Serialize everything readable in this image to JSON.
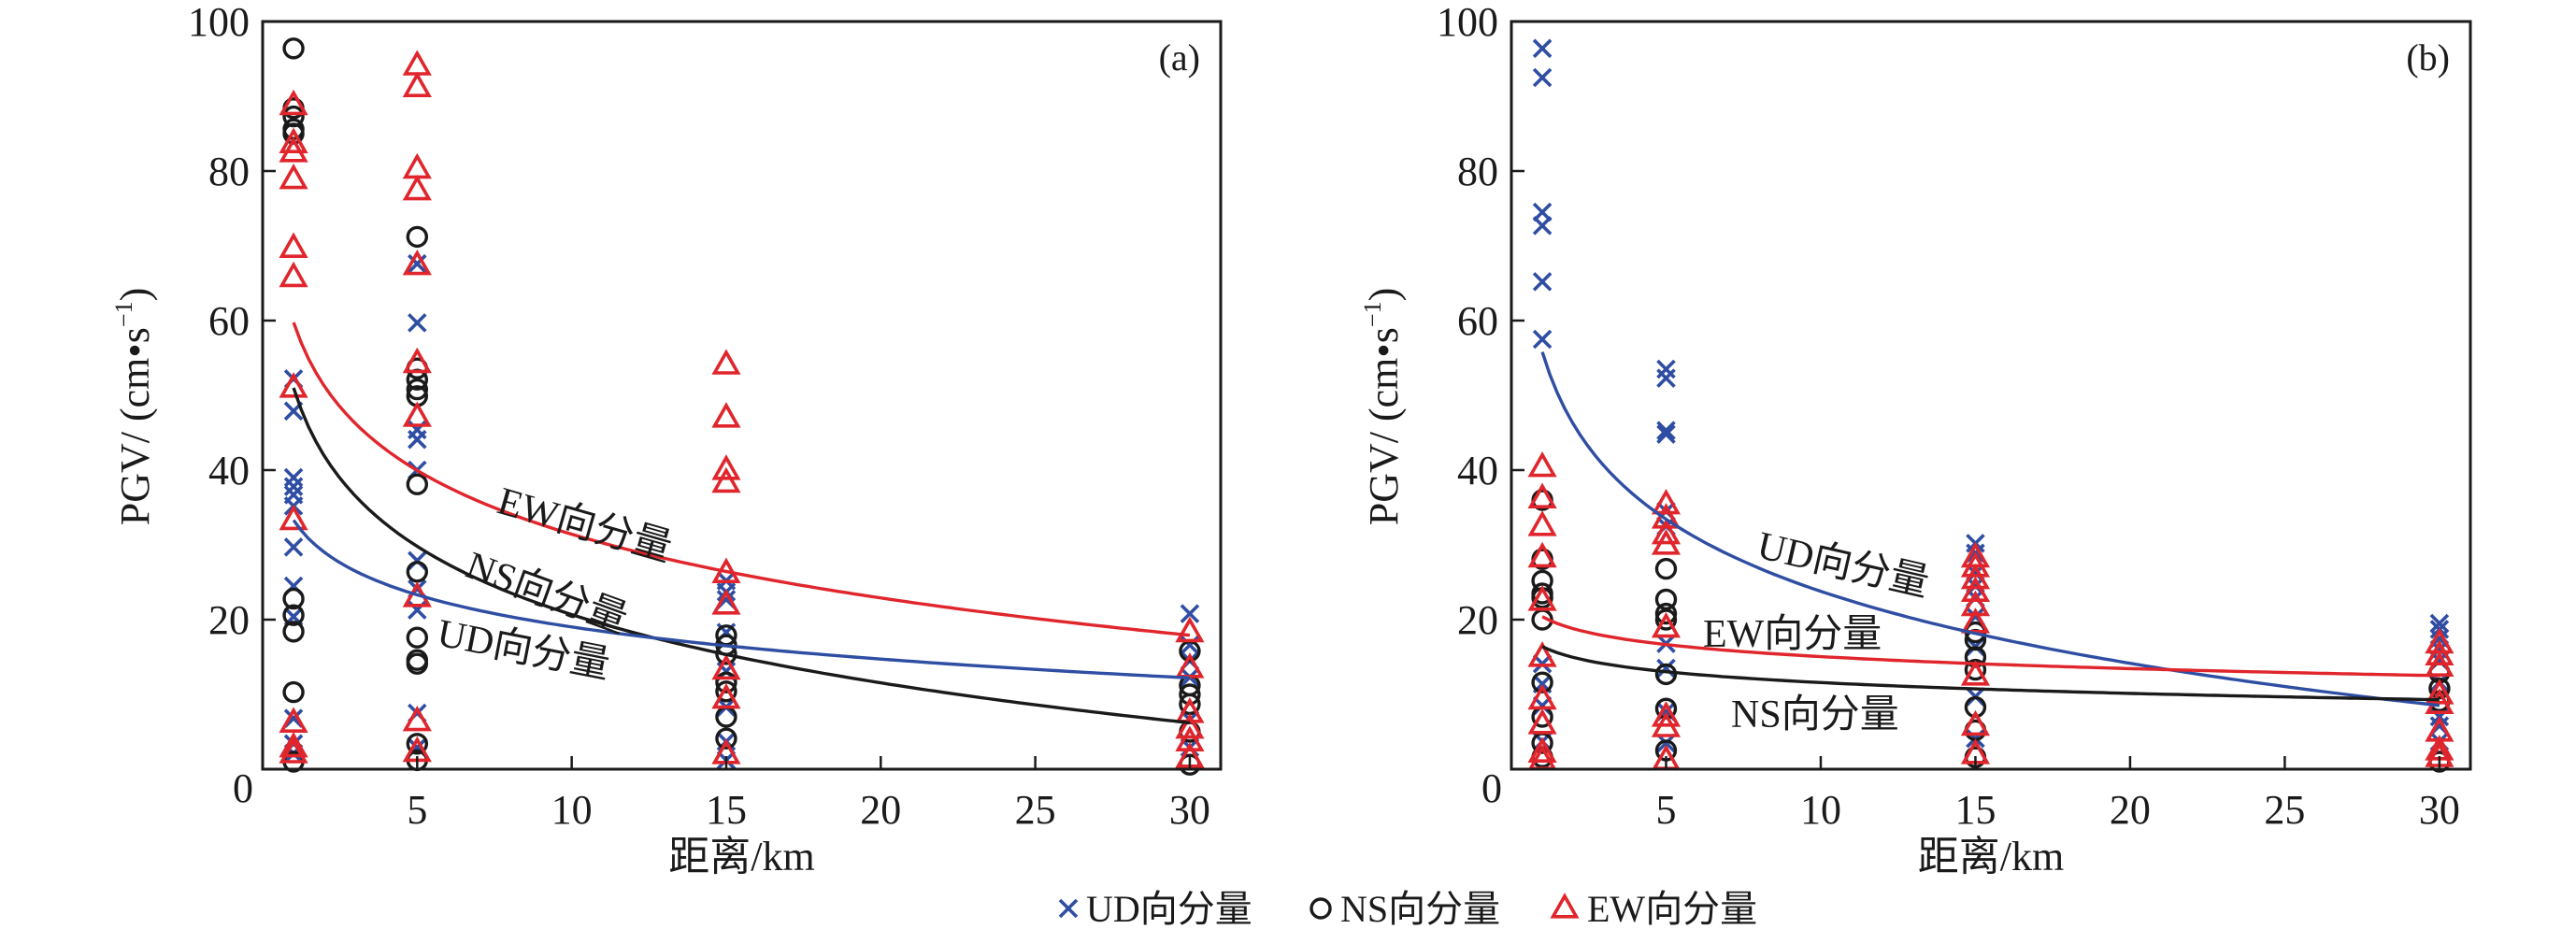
{
  "colors": {
    "UD": "#2f4ea3",
    "NS": "#1a1a1a",
    "EW": "#e0262c",
    "axis": "#1a1a1a"
  },
  "legend": {
    "position": "bottom-center",
    "items": [
      {
        "key": "UD",
        "marker": "cross-icon",
        "label": "UD向分量"
      },
      {
        "key": "NS",
        "marker": "circle-icon",
        "label": "NS向分量"
      },
      {
        "key": "EW",
        "marker": "triangle-icon",
        "label": "EW向分量"
      }
    ]
  },
  "chart_data": [
    {
      "type": "scatter",
      "panel_label": "(a)",
      "xlabel": "距离/km",
      "ylabel_main": "PGV/ (cm",
      "ylabel_dot": "•",
      "ylabel_unit": "s",
      "ylabel_exp": "−1",
      "ylabel_close": ")",
      "xlim": [
        0,
        31
      ],
      "ylim": [
        0,
        100
      ],
      "xticks": [
        5,
        10,
        15,
        20,
        25,
        30
      ],
      "yticks": [
        20,
        40,
        60,
        80
      ],
      "origin_label": "0",
      "ytick_top_label": "100",
      "grid": false,
      "series": [
        {
          "name": "UD",
          "marker": "cross",
          "points": [
            [
              1,
              52.2
            ],
            [
              1,
              47.9
            ],
            [
              1,
              39.0
            ],
            [
              1,
              37.8
            ],
            [
              1,
              36.7
            ],
            [
              1,
              35.2
            ],
            [
              1,
              29.7
            ],
            [
              1,
              24.5
            ],
            [
              1,
              20.4
            ],
            [
              1,
              6.8
            ],
            [
              1,
              3.4
            ],
            [
              1,
              2.1
            ],
            [
              5,
              67.6
            ],
            [
              5,
              59.7
            ],
            [
              5,
              45.4
            ],
            [
              5,
              44.1
            ],
            [
              5,
              40.0
            ],
            [
              5,
              27.9
            ],
            [
              5,
              24.1
            ],
            [
              5,
              21.3
            ],
            [
              5,
              7.5
            ],
            [
              5,
              2.9
            ],
            [
              15,
              25.2
            ],
            [
              15,
              23.7
            ],
            [
              15,
              22.7
            ],
            [
              15,
              18.3
            ],
            [
              15,
              13.1
            ],
            [
              15,
              8.3
            ],
            [
              15,
              3.7
            ],
            [
              15,
              1.2
            ],
            [
              30,
              20.8
            ],
            [
              30,
              16.6
            ],
            [
              30,
              14.5
            ],
            [
              30,
              12.3
            ],
            [
              30,
              6.6
            ],
            [
              30,
              2.9
            ]
          ]
        },
        {
          "name": "NS",
          "marker": "circle",
          "points": [
            [
              1,
              96.4
            ],
            [
              1,
              88.4
            ],
            [
              1,
              87.3
            ],
            [
              1,
              85.6
            ],
            [
              1,
              85.0
            ],
            [
              1,
              22.8
            ],
            [
              1,
              20.6
            ],
            [
              1,
              18.4
            ],
            [
              1,
              10.3
            ],
            [
              1,
              1.0
            ],
            [
              5,
              71.2
            ],
            [
              5,
              53.6
            ],
            [
              5,
              52.1
            ],
            [
              5,
              50.8
            ],
            [
              5,
              49.9
            ],
            [
              5,
              38.1
            ],
            [
              5,
              26.4
            ],
            [
              5,
              17.6
            ],
            [
              5,
              14.6
            ],
            [
              5,
              14.1
            ],
            [
              5,
              3.4
            ],
            [
              5,
              1.2
            ],
            [
              15,
              17.9
            ],
            [
              15,
              16.6
            ],
            [
              15,
              15.4
            ],
            [
              15,
              11.6
            ],
            [
              15,
              10.4
            ],
            [
              15,
              7.0
            ],
            [
              15,
              4.1
            ],
            [
              30,
              15.8
            ],
            [
              30,
              11.2
            ],
            [
              30,
              10.0
            ],
            [
              30,
              8.7
            ],
            [
              30,
              5.0
            ],
            [
              30,
              0.6
            ]
          ]
        },
        {
          "name": "EW",
          "marker": "triangle",
          "points": [
            [
              1,
              88.8
            ],
            [
              1,
              83.7
            ],
            [
              1,
              82.5
            ],
            [
              1,
              78.9
            ],
            [
              1,
              69.7
            ],
            [
              1,
              65.8
            ],
            [
              1,
              51.0
            ],
            [
              1,
              33.3
            ],
            [
              1,
              6.2
            ],
            [
              1,
              2.9
            ],
            [
              1,
              2.1
            ],
            [
              5,
              94.1
            ],
            [
              5,
              91.2
            ],
            [
              5,
              80.3
            ],
            [
              5,
              77.4
            ],
            [
              5,
              67.4
            ],
            [
              5,
              54.3
            ],
            [
              5,
              47.1
            ],
            [
              5,
              23.0
            ],
            [
              5,
              6.4
            ],
            [
              5,
              2.3
            ],
            [
              15,
              54.1
            ],
            [
              15,
              47.0
            ],
            [
              15,
              40.0
            ],
            [
              15,
              38.3
            ],
            [
              15,
              26.2
            ],
            [
              15,
              22.0
            ],
            [
              15,
              13.3
            ],
            [
              15,
              9.4
            ],
            [
              15,
              2.0
            ],
            [
              30,
              18.3
            ],
            [
              30,
              13.5
            ],
            [
              30,
              7.5
            ],
            [
              30,
              5.4
            ],
            [
              30,
              3.7
            ],
            [
              30,
              1.5
            ]
          ]
        }
      ],
      "fits": [
        {
          "name": "EW",
          "a": 59.75,
          "b": 12.3,
          "label": "EW向分量"
        },
        {
          "name": "NS",
          "a": 51.0,
          "b": 13.17,
          "label": "NS向分量"
        },
        {
          "name": "UD",
          "a": 33.3,
          "b": 6.2,
          "label": "UD向分量"
        }
      ]
    },
    {
      "type": "scatter",
      "panel_label": "(b)",
      "xlabel": "距离/km",
      "ylabel_main": "PGV/ (cm",
      "ylabel_dot": "•",
      "ylabel_unit": "s",
      "ylabel_exp": "−1",
      "ylabel_close": ")",
      "xlim": [
        0,
        31
      ],
      "ylim": [
        0,
        100
      ],
      "xticks": [
        5,
        10,
        15,
        20,
        25,
        30
      ],
      "yticks": [
        20,
        40,
        60,
        80
      ],
      "origin_label": "0",
      "ytick_top_label": "100",
      "grid": false,
      "series": [
        {
          "name": "UD",
          "marker": "cross",
          "points": [
            [
              1,
              96.4
            ],
            [
              1,
              92.5
            ],
            [
              1,
              74.5
            ],
            [
              1,
              72.7
            ],
            [
              1,
              65.2
            ],
            [
              1,
              57.5
            ],
            [
              1,
              14.1
            ],
            [
              1,
              11.4
            ],
            [
              1,
              8.5
            ],
            [
              1,
              3.7
            ],
            [
              5,
              53.5
            ],
            [
              5,
              52.3
            ],
            [
              5,
              45.3
            ],
            [
              5,
              44.8
            ],
            [
              5,
              34.5
            ],
            [
              5,
              32.5
            ],
            [
              5,
              16.8
            ],
            [
              5,
              13.5
            ],
            [
              5,
              7.7
            ],
            [
              5,
              3.5
            ],
            [
              15,
              30.2
            ],
            [
              15,
              28.9
            ],
            [
              15,
              26.2
            ],
            [
              15,
              24.5
            ],
            [
              15,
              22.9
            ],
            [
              15,
              20.4
            ],
            [
              15,
              16.4
            ],
            [
              15,
              9.7
            ],
            [
              15,
              4.1
            ],
            [
              30,
              19.5
            ],
            [
              30,
              18.7
            ],
            [
              30,
              17.5
            ],
            [
              30,
              16.0
            ],
            [
              30,
              14.5
            ],
            [
              30,
              11.6
            ],
            [
              30,
              7.0
            ],
            [
              30,
              5.8
            ],
            [
              30,
              3.7
            ]
          ]
        },
        {
          "name": "NS",
          "marker": "circle",
          "points": [
            [
              1,
              36.0
            ],
            [
              1,
              28.1
            ],
            [
              1,
              25.2
            ],
            [
              1,
              23.5
            ],
            [
              1,
              22.9
            ],
            [
              1,
              20.0
            ],
            [
              1,
              11.6
            ],
            [
              1,
              7.0
            ],
            [
              1,
              3.5
            ],
            [
              1,
              1.6
            ],
            [
              5,
              26.8
            ],
            [
              5,
              22.7
            ],
            [
              5,
              20.8
            ],
            [
              5,
              20.0
            ],
            [
              5,
              12.7
            ],
            [
              5,
              8.1
            ],
            [
              5,
              2.5
            ],
            [
              15,
              18.3
            ],
            [
              15,
              17.3
            ],
            [
              15,
              15.0
            ],
            [
              15,
              13.3
            ],
            [
              15,
              8.3
            ],
            [
              15,
              5.2
            ],
            [
              15,
              1.6
            ],
            [
              30,
              12.9
            ],
            [
              30,
              10.8
            ],
            [
              30,
              9.1
            ],
            [
              30,
              1.0
            ]
          ]
        },
        {
          "name": "EW",
          "marker": "triangle",
          "points": [
            [
              1,
              40.4
            ],
            [
              1,
              36.2
            ],
            [
              1,
              32.5
            ],
            [
              1,
              28.3
            ],
            [
              1,
              22.5
            ],
            [
              1,
              15.0
            ],
            [
              1,
              9.3
            ],
            [
              1,
              6.0
            ],
            [
              1,
              2.2
            ],
            [
              1,
              1.2
            ],
            [
              5,
              35.4
            ],
            [
              5,
              33.5
            ],
            [
              5,
              31.4
            ],
            [
              5,
              30.0
            ],
            [
              5,
              18.9
            ],
            [
              5,
              7.0
            ],
            [
              5,
              5.6
            ],
            [
              5,
              1.2
            ],
            [
              15,
              28.3
            ],
            [
              15,
              27.0
            ],
            [
              15,
              25.4
            ],
            [
              15,
              23.7
            ],
            [
              15,
              21.8
            ],
            [
              15,
              19.5
            ],
            [
              15,
              12.5
            ],
            [
              15,
              5.8
            ],
            [
              15,
              2.0
            ],
            [
              30,
              16.8
            ],
            [
              30,
              15.2
            ],
            [
              30,
              13.7
            ],
            [
              30,
              10.0
            ],
            [
              30,
              8.7
            ],
            [
              30,
              5.0
            ],
            [
              30,
              2.5
            ],
            [
              30,
              1.6
            ]
          ]
        }
      ],
      "fits": [
        {
          "name": "UD",
          "a": 55.8,
          "b": 13.9,
          "label": "UD向分量"
        },
        {
          "name": "EW",
          "a": 20.4,
          "b": 2.32,
          "label": "EW向分量"
        },
        {
          "name": "NS",
          "a": 16.4,
          "b": 2.09,
          "label": "NS向分量"
        }
      ]
    }
  ]
}
